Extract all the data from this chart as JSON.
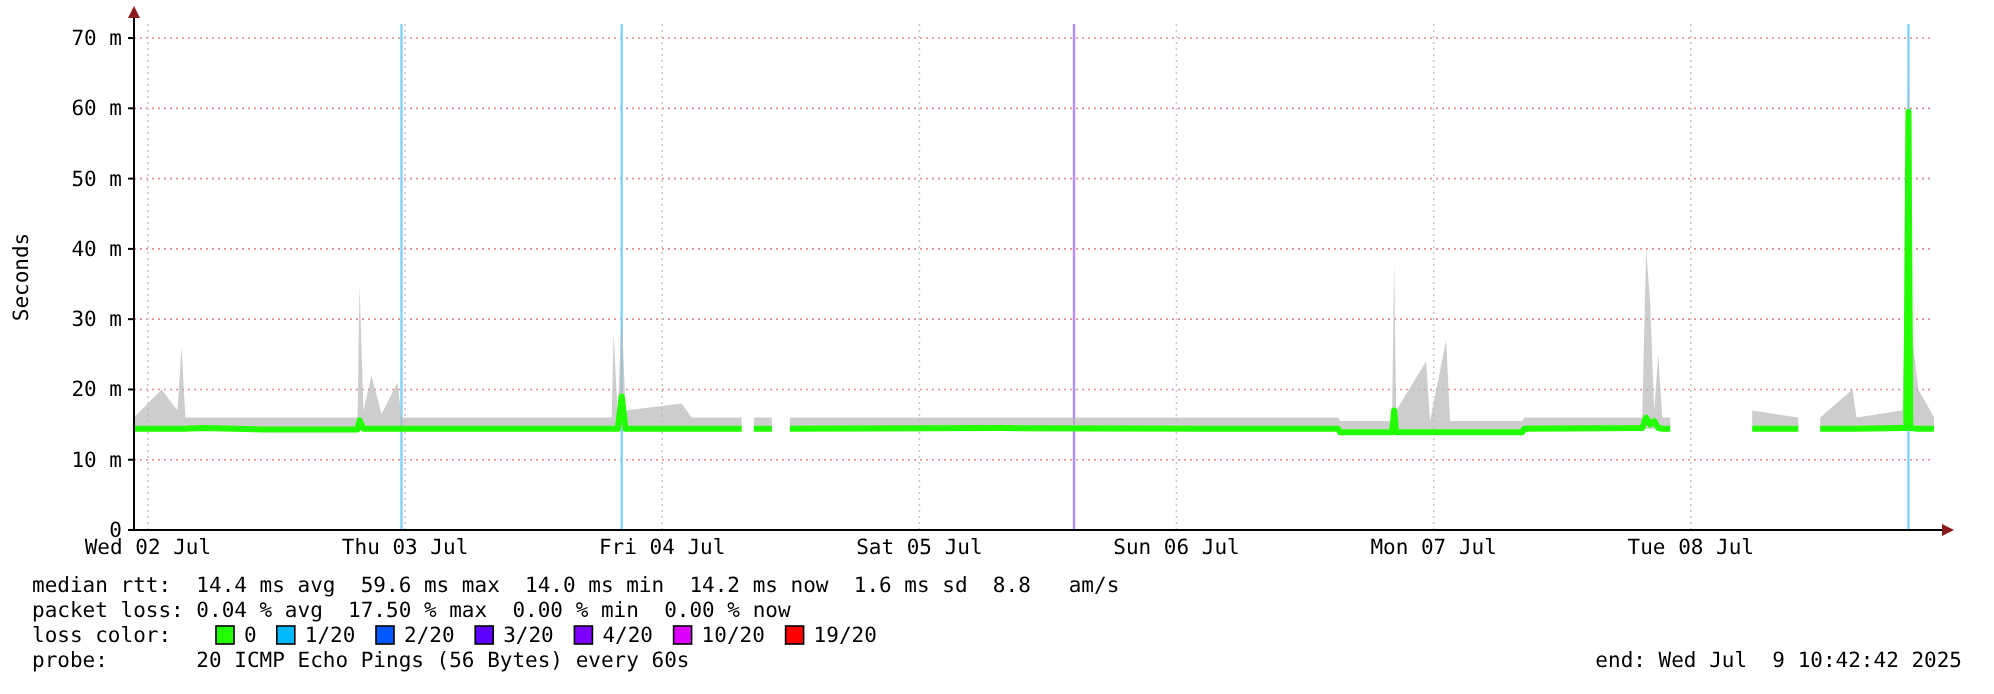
{
  "chart_data": {
    "type": "line",
    "ylabel": "Seconds",
    "legend_title": "loss color:",
    "legend": "bottom",
    "grid": true,
    "xlim": [
      "2025-07-02T10:42",
      "2025-07-09T10:42"
    ],
    "xticks": [
      {
        "value": "2025-07-02T12:00",
        "label": "Wed 02 Jul"
      },
      {
        "value": "2025-07-03T12:00",
        "label": "Thu 03 Jul"
      },
      {
        "value": "2025-07-04T12:00",
        "label": "Fri 04 Jul"
      },
      {
        "value": "2025-07-05T12:00",
        "label": "Sat 05 Jul"
      },
      {
        "value": "2025-07-06T12:00",
        "label": "Sun 06 Jul"
      },
      {
        "value": "2025-07-07T12:00",
        "label": "Mon 07 Jul"
      },
      {
        "value": "2025-07-08T12:00",
        "label": "Tue 08 Jul"
      }
    ],
    "ylim": [
      0,
      72
    ],
    "yticks": [
      0,
      {
        "value": 10,
        "label": "10 m"
      },
      {
        "value": 20,
        "label": "20 m"
      },
      {
        "value": 30,
        "label": "30 m"
      },
      {
        "value": 40,
        "label": "40 m"
      },
      {
        "value": 50,
        "label": "50 m"
      },
      {
        "value": 60,
        "label": "60 m"
      },
      {
        "value": 70,
        "label": "70 m"
      }
    ],
    "series": [
      {
        "name": "0",
        "color": "#22ff00",
        "x": [
          "2025-07-02T10:42",
          "2025-07-02T13:16",
          "2025-07-02T14:45",
          "2025-07-02T15:08",
          "2025-07-02T15:30",
          "2025-07-02T17:00",
          "2025-07-02T22:36",
          "2025-07-03T07:34",
          "2025-07-03T07:45",
          "2025-07-03T08:07",
          "2025-07-03T08:52",
          "2025-07-03T09:48",
          "2025-07-03T11:18",
          "2025-07-03T11:40",
          "2025-07-03T21:01",
          "2025-07-04T07:17",
          "2025-07-04T07:28",
          "2025-07-04T07:51",
          "2025-07-04T08:13",
          "2025-07-04T08:35",
          "2025-07-04T13:49",
          "2025-07-04T14:45",
          "2025-07-04T19:25",
          "2025-07-04T19:59",
          "2025-07-04T20:33",
          "2025-07-04T22:14",
          "2025-07-04T23:10",
          "2025-07-04T23:55",
          "2025-07-05T19:42",
          "2025-07-06T14:23",
          "2025-07-07T01:35",
          "2025-07-07T03:05",
          "2025-07-07T03:16",
          "2025-07-07T08:07",
          "2025-07-07T08:19",
          "2025-07-07T08:30",
          "2025-07-07T11:18",
          "2025-07-07T11:40",
          "2025-07-07T13:10",
          "2025-07-07T13:32",
          "2025-07-07T20:16",
          "2025-07-07T20:27",
          "2025-07-08T07:28",
          "2025-07-08T07:50",
          "2025-07-08T08:13",
          "2025-07-08T08:35",
          "2025-07-08T08:58",
          "2025-07-08T09:20",
          "2025-07-08T10:05",
          "2025-07-08T13:04",
          "2025-07-08T17:44",
          "2025-07-08T22:02",
          "2025-07-08T23:10",
          "2025-07-09T00:05",
          "2025-07-09T03:05",
          "2025-07-09T03:28",
          "2025-07-09T07:45",
          "2025-07-09T08:07",
          "2025-07-09T08:19",
          "2025-07-09T08:29",
          "2025-07-09T09:14",
          "2025-07-09T09:59",
          "2025-07-09T10:42"
        ],
        "values": [
          14.4,
          14.4,
          14.4,
          14.4,
          14.4,
          14.5,
          14.3,
          14.3,
          15.6,
          14.4,
          14.4,
          14.4,
          14.4,
          14.4,
          14.4,
          14.4,
          14.4,
          14.4,
          19,
          14.4,
          14.4,
          14.4,
          14.4,
          null,
          14.4,
          14.4,
          null,
          14.4,
          14.5,
          14.4,
          14.4,
          14.4,
          13.9,
          13.9,
          17,
          13.9,
          13.9,
          13.9,
          13.9,
          13.9,
          13.9,
          14.4,
          14.5,
          16,
          15,
          15.5,
          14.5,
          14.4,
          14.4,
          null,
          14.4,
          14.4,
          null,
          14.4,
          14.4,
          14.4,
          14.5,
          14.5,
          59.5,
          14.5,
          14.4,
          14.4,
          14.4
        ],
        "lower": [
          14.1,
          14.1,
          14.1,
          14.1,
          14.1,
          14.1,
          14.1,
          14.1,
          14.4,
          14.1,
          14.1,
          14.1,
          14.1,
          14.1,
          14.1,
          14.1,
          14.1,
          14.1,
          14.4,
          14.1,
          14.1,
          14.1,
          14.1,
          null,
          14.1,
          14.1,
          null,
          14.1,
          14.1,
          14.1,
          14.1,
          14.1,
          13.7,
          13.7,
          13.9,
          13.7,
          13.7,
          13.7,
          13.7,
          13.7,
          13.7,
          14.1,
          14.1,
          14.4,
          14.4,
          14.4,
          14.1,
          14.1,
          14.1,
          null,
          14.1,
          14.1,
          null,
          14.1,
          14.1,
          14.1,
          14.1,
          14.1,
          14.4,
          14.1,
          14.1,
          14.1,
          14.1
        ],
        "upper": [
          16,
          20,
          17,
          26,
          16,
          16,
          16,
          16,
          35,
          17,
          22,
          16.5,
          21,
          16,
          16,
          16,
          28,
          16,
          31,
          17,
          18,
          16,
          16,
          null,
          16,
          16,
          null,
          16,
          16,
          16,
          16,
          16,
          15.5,
          15.5,
          38,
          17,
          24,
          15.5,
          27,
          15.5,
          15.5,
          16,
          16,
          40,
          32,
          17,
          25,
          16,
          16,
          null,
          17,
          16,
          null,
          16,
          20,
          16,
          17,
          40,
          71.5,
          30,
          20,
          18,
          16
        ]
      },
      {
        "name": "1/20",
        "color": "#00b8ff"
      },
      {
        "name": "2/20",
        "color": "#0059ff"
      },
      {
        "name": "3/20",
        "color": "#5e00ff"
      },
      {
        "name": "4/20",
        "color": "#7e00ff"
      },
      {
        "name": "10/20",
        "color": "#dd00ff"
      },
      {
        "name": "19/20",
        "color": "#ff0000"
      }
    ],
    "ref_lines": [
      {
        "axis": "x",
        "value": "2025-07-03T11:40",
        "color": "#7fd4ff"
      },
      {
        "axis": "x",
        "value": "2025-07-04T08:13",
        "color": "#7fd4ff"
      },
      {
        "axis": "x",
        "value": "2025-07-06T02:26",
        "color": "#b48cff"
      },
      {
        "axis": "x",
        "value": "2025-07-09T08:19",
        "color": "#7fd4ff"
      }
    ],
    "annotations": [
      "median rtt:  14.4 ms avg  59.6 ms max  14.0 ms min  14.2 ms now  1.6 ms sd  8.8   am/s",
      "packet loss: 0.04 % avg  17.50 % max  0.00 % min  0.00 % now",
      "probe:       20 ICMP Echo Pings (56 Bytes) every 60s",
      "end: Wed Jul  9 10:42:42 2025"
    ]
  }
}
